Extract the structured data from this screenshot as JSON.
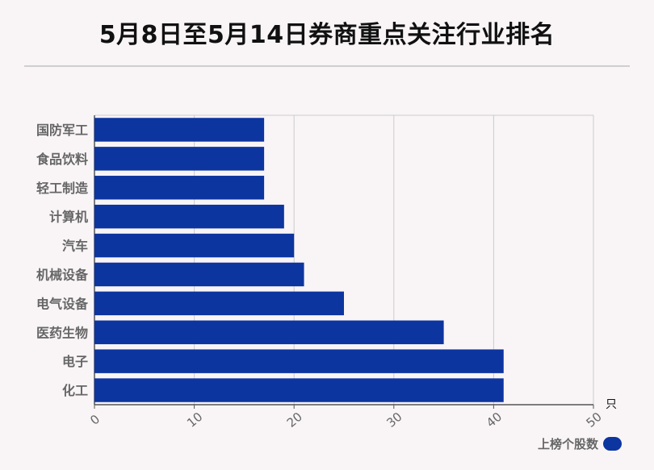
{
  "header": {
    "title": "5月8日至5月14日券商重点关注行业排名"
  },
  "colors": {
    "bar": "#0d35a0",
    "grid": "#cccccc",
    "axis": "#555555",
    "label": "#666666"
  },
  "chart_data": {
    "type": "bar",
    "orientation": "horizontal",
    "categories": [
      "国防军工",
      "食品饮料",
      "轻工制造",
      "计算机",
      "汽车",
      "机械设备",
      "电气设备",
      "医药生物",
      "电子",
      "化工"
    ],
    "series": [
      {
        "name": "上榜个股数",
        "values": [
          17,
          17,
          17,
          19,
          20,
          21,
          25,
          35,
          41,
          41
        ]
      }
    ],
    "xlim": [
      0,
      50
    ],
    "xticks": [
      0,
      10,
      20,
      30,
      40,
      50
    ],
    "xunit": "只",
    "grid": true,
    "legend": "bottom-right"
  }
}
